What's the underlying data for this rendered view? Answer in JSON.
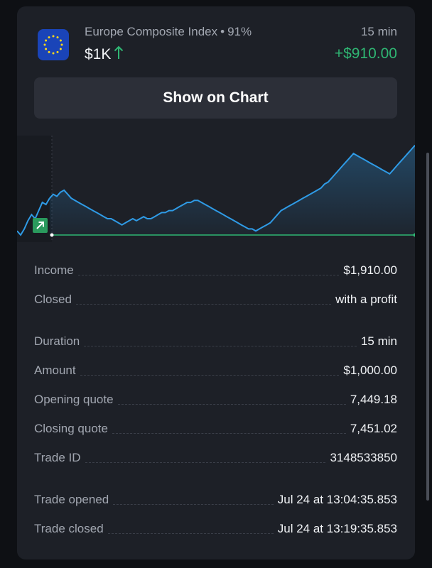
{
  "header": {
    "asset_name": "Europe Composite Index",
    "separator": "•",
    "payout_percent": "91%",
    "amount": "$1K",
    "direction": "up",
    "duration": "15 min",
    "profit": "+$910.00"
  },
  "button": {
    "label": "Show on Chart"
  },
  "colors": {
    "profit_green": "#2fb673",
    "chart_line": "#2f9be6",
    "card_bg": "#1d2027",
    "button_bg": "#2c2f38"
  },
  "chart_data": {
    "type": "area",
    "entry_marker": "arrow-up-right-icon",
    "baseline_value": 50,
    "ylim": [
      0,
      100
    ],
    "x": [
      0,
      1,
      2,
      3,
      4,
      5,
      6,
      7,
      8,
      9,
      10,
      11,
      12,
      13,
      14,
      15,
      16,
      17,
      18,
      19,
      20,
      21,
      22,
      23,
      24,
      25,
      26,
      27,
      28,
      29,
      30,
      31,
      32,
      33,
      34,
      35,
      36,
      37,
      38,
      39,
      40,
      41,
      42,
      43,
      44,
      45,
      46,
      47,
      48,
      49,
      50,
      51,
      52,
      53,
      54,
      55,
      56,
      57,
      58,
      59,
      60,
      61,
      62,
      63,
      64,
      65,
      66,
      67,
      68,
      69,
      70,
      71,
      72,
      73,
      74,
      75,
      76,
      77,
      78,
      79,
      80,
      81,
      82,
      83,
      84,
      85,
      86,
      87,
      88,
      89,
      90,
      91,
      92,
      93,
      94,
      95,
      96,
      97,
      98,
      99,
      100,
      101,
      102,
      103,
      104,
      105,
      106,
      107,
      108,
      109,
      110
    ],
    "y": [
      52,
      50,
      53,
      57,
      60,
      58,
      62,
      66,
      65,
      68,
      70,
      69,
      71,
      72,
      70,
      68,
      67,
      66,
      65,
      64,
      63,
      62,
      61,
      60,
      59,
      58,
      58,
      57,
      56,
      55,
      56,
      57,
      58,
      57,
      58,
      59,
      58,
      58,
      59,
      60,
      61,
      61,
      62,
      62,
      63,
      64,
      65,
      66,
      66,
      67,
      67,
      66,
      65,
      64,
      63,
      62,
      61,
      60,
      59,
      58,
      57,
      56,
      55,
      54,
      53,
      53,
      52,
      53,
      54,
      55,
      56,
      58,
      60,
      62,
      63,
      64,
      65,
      66,
      67,
      68,
      69,
      70,
      71,
      72,
      73,
      75,
      76,
      78,
      80,
      82,
      84,
      86,
      88,
      90,
      89,
      88,
      87,
      86,
      85,
      84,
      83,
      82,
      81,
      80,
      82,
      84,
      86,
      88,
      90,
      92,
      94
    ]
  },
  "details": [
    {
      "label": "Income",
      "value": "$1,910.00"
    },
    {
      "label": "Closed",
      "value": "with a profit"
    },
    {
      "label": "Duration",
      "value": "15 min"
    },
    {
      "label": "Amount",
      "value": "$1,000.00"
    },
    {
      "label": "Opening quote",
      "value": "7,449.18"
    },
    {
      "label": "Closing quote",
      "value": "7,451.02"
    },
    {
      "label": "Trade ID",
      "value": "3148533850"
    },
    {
      "label": "Trade opened",
      "value": "Jul 24 at 13:04:35.853"
    },
    {
      "label": "Trade closed",
      "value": "Jul 24 at 13:19:35.853"
    }
  ]
}
